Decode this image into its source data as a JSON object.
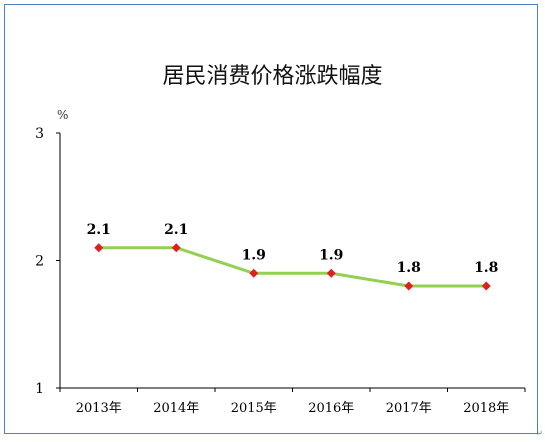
{
  "chart_data": {
    "type": "line",
    "title": "居民消费价格涨跌幅度",
    "unit_label": "%",
    "categories": [
      "2013年",
      "2014年",
      "2015年",
      "2016年",
      "2017年",
      "2018年"
    ],
    "series": [
      {
        "values": [
          2.1,
          2.1,
          1.9,
          1.9,
          1.8,
          1.8
        ]
      }
    ],
    "data_labels": [
      "2.1",
      "2.1",
      "1.9",
      "1.9",
      "1.8",
      "1.8"
    ],
    "y_ticks": [
      "1",
      "2",
      "3"
    ],
    "ylim": [
      1,
      3
    ],
    "grid": false,
    "line_color": "#92d050",
    "marker_color": "#e02020",
    "frame_color": "#4f81bd"
  },
  "corner_mark": "↵"
}
